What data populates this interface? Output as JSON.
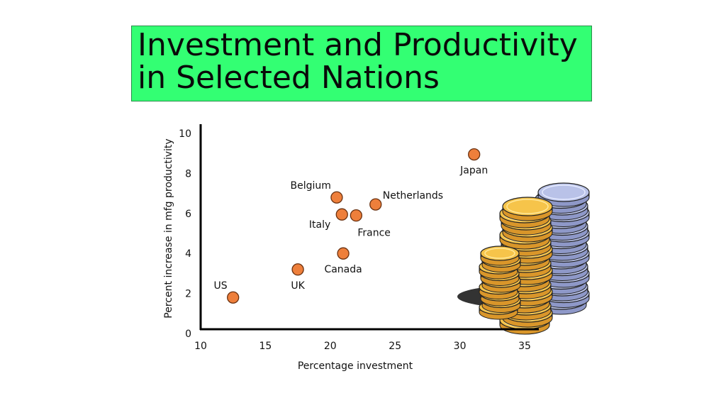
{
  "title": "Investment and Productivity\nin Selected Nations",
  "colors": {
    "title_bg": "#33ff73",
    "point_fill": "#ee7f3b",
    "point_stroke": "#6a3110"
  },
  "decoration": "coin-stacks-clipart",
  "chart_data": {
    "type": "scatter",
    "xlabel": "Percentage investment",
    "ylabel": "Percent increase in mfg productivity",
    "xlim": [
      10,
      35
    ],
    "ylim": [
      0,
      10
    ],
    "x_ticks": [
      "10",
      "15",
      "20",
      "25",
      "30",
      "35"
    ],
    "y_ticks": [
      "0",
      "2",
      "4",
      "6",
      "8",
      "10"
    ],
    "grid": false,
    "points": [
      {
        "label": "US",
        "x": 12.5,
        "y": 1.8,
        "label_pos": "upper-left"
      },
      {
        "label": "UK",
        "x": 17.5,
        "y": 3.2,
        "label_pos": "below"
      },
      {
        "label": "Canada",
        "x": 21.0,
        "y": 4.0,
        "label_pos": "below"
      },
      {
        "label": "Italy",
        "x": 20.9,
        "y": 5.95,
        "label_pos": "lower-left"
      },
      {
        "label": "France",
        "x": 22.0,
        "y": 5.9,
        "label_pos": "below-right"
      },
      {
        "label": "Belgium",
        "x": 20.5,
        "y": 6.8,
        "label_pos": "upper-left"
      },
      {
        "label": "Netherlands",
        "x": 23.5,
        "y": 6.45,
        "label_pos": "upper-right"
      },
      {
        "label": "Japan",
        "x": 31.1,
        "y": 8.95,
        "label_pos": "below"
      }
    ]
  }
}
